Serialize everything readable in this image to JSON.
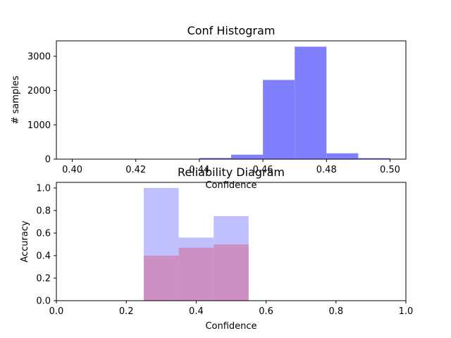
{
  "chart_data": [
    {
      "type": "bar",
      "title": "Conf Histogram",
      "xlabel": "Confidence",
      "ylabel": "# samples",
      "xlim": [
        0.395,
        0.505
      ],
      "ylim": [
        0,
        3450
      ],
      "xticks": [
        0.4,
        0.42,
        0.44,
        0.46,
        0.48,
        0.5
      ],
      "xtick_labels": [
        "0.40",
        "0.42",
        "0.44",
        "0.46",
        "0.48",
        "0.50"
      ],
      "yticks": [
        0,
        1000,
        2000,
        3000
      ],
      "ytick_labels": [
        "0",
        "1000",
        "2000",
        "3000"
      ],
      "bins": [
        {
          "x0": 0.4,
          "x1": 0.41,
          "value": 0
        },
        {
          "x0": 0.41,
          "x1": 0.42,
          "value": 0
        },
        {
          "x0": 0.42,
          "x1": 0.43,
          "value": 0
        },
        {
          "x0": 0.43,
          "x1": 0.44,
          "value": 10
        },
        {
          "x0": 0.44,
          "x1": 0.45,
          "value": 35
        },
        {
          "x0": 0.45,
          "x1": 0.46,
          "value": 130
        },
        {
          "x0": 0.46,
          "x1": 0.47,
          "value": 2310
        },
        {
          "x0": 0.47,
          "x1": 0.48,
          "value": 3280
        },
        {
          "x0": 0.48,
          "x1": 0.49,
          "value": 170
        },
        {
          "x0": 0.49,
          "x1": 0.5,
          "value": 30
        }
      ],
      "bar_color": "#8080ff"
    },
    {
      "type": "bar",
      "title": "Reliability Diagram",
      "xlabel": "Confidence",
      "ylabel": "Accuracy",
      "xlim": [
        0.0,
        1.0
      ],
      "ylim": [
        0.0,
        1.05
      ],
      "xticks": [
        0.0,
        0.2,
        0.4,
        0.6,
        0.8,
        1.0
      ],
      "xtick_labels": [
        "0.0",
        "0.2",
        "0.4",
        "0.6",
        "0.8",
        "1.0"
      ],
      "yticks": [
        0.0,
        0.2,
        0.4,
        0.6,
        0.8,
        1.0
      ],
      "ytick_labels": [
        "0.0",
        "0.2",
        "0.4",
        "0.6",
        "0.8",
        "1.0"
      ],
      "series": [
        {
          "values": [
            {
              "x0": 0.25,
              "x1": 0.35,
              "value": 1.0
            },
            {
              "x0": 0.35,
              "x1": 0.45,
              "value": 0.56
            },
            {
              "x0": 0.45,
              "x1": 0.55,
              "value": 0.75
            }
          ],
          "color": "#c0c0ff"
        },
        {
          "values": [
            {
              "x0": 0.25,
              "x1": 0.35,
              "value": 0.4
            },
            {
              "x0": 0.35,
              "x1": 0.45,
              "value": 0.47
            },
            {
              "x0": 0.45,
              "x1": 0.55,
              "value": 0.5
            }
          ],
          "color": "#cd90c4"
        }
      ]
    }
  ]
}
